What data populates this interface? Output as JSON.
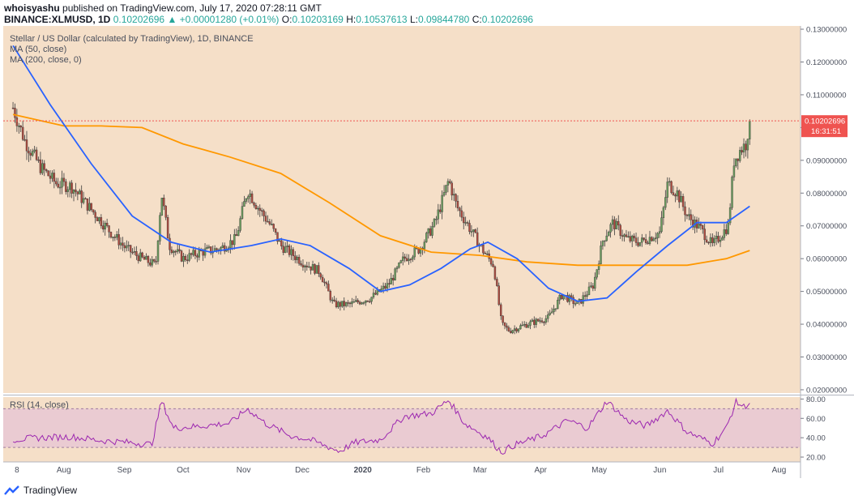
{
  "header": {
    "author": "whoisyashu",
    "published": "published on TradingView.com, July 17, 2020 07:28:11 GMT",
    "symbol": "BINANCE:XLMUSD, 1D",
    "last": "0.10202696",
    "change": "▲ +0.00001280 (+0.01%)",
    "o_label": "O:",
    "o_val": "0.10203169",
    "h_label": "H:",
    "h_val": "0.10537613",
    "l_label": "L:",
    "l_val": "0.09844780",
    "c_label": "C:",
    "c_val": "0.10202696"
  },
  "legend": {
    "title": "Stellar / US Dollar (calculated by TradingView), 1D, BINANCE",
    "ma50": "MA (50, close)",
    "ma200": "MA (200, close, 0)",
    "rsi": "RSI (14, close)"
  },
  "price_marker": {
    "value": "0.10202696",
    "countdown": "16:31:51"
  },
  "brand": "TradingView",
  "colors": {
    "background": "#f5dfc8",
    "up": "#26a69a",
    "down": "#ef5350",
    "candle_up_fill": "#6b9e5e",
    "candle_down_fill": "#b04a3e",
    "ma50": "#2962ff",
    "ma200": "#ff9800",
    "rsi": "#9c27b0",
    "rsi_band": "#e6c4d6",
    "price_line": "#ef5350"
  },
  "chart_data": [
    {
      "type": "candlestick",
      "title": "Stellar / US Dollar (calculated by TradingView), 1D, BINANCE",
      "x_tick_labels": [
        "8",
        "Aug",
        "Sep",
        "Oct",
        "Nov",
        "Dec",
        "2020",
        "Feb",
        "Mar",
        "Apr",
        "May",
        "Jun",
        "Jul",
        "Aug"
      ],
      "y_tick_labels": [
        "0.02000000",
        "0.03000000",
        "0.04000000",
        "0.05000000",
        "0.06000000",
        "0.07000000",
        "0.08000000",
        "0.09000000",
        "0.10000000",
        "0.11000000",
        "0.12000000",
        "0.13000000"
      ],
      "ylim": [
        0.019,
        0.131
      ],
      "period": "1D",
      "date_range": [
        "2019-07-06",
        "2020-07-17"
      ],
      "price_path": [
        [
          "2019-07-06",
          0.106
        ],
        [
          "2019-07-12",
          0.096
        ],
        [
          "2019-07-20",
          0.088
        ],
        [
          "2019-07-28",
          0.083
        ],
        [
          "2019-08-05",
          0.082
        ],
        [
          "2019-08-15",
          0.075
        ],
        [
          "2019-08-25",
          0.068
        ],
        [
          "2019-09-02",
          0.063
        ],
        [
          "2019-09-10",
          0.06
        ],
        [
          "2019-09-17",
          0.058
        ],
        [
          "2019-09-20",
          0.08
        ],
        [
          "2019-09-24",
          0.064
        ],
        [
          "2019-10-01",
          0.06
        ],
        [
          "2019-10-10",
          0.062
        ],
        [
          "2019-10-20",
          0.063
        ],
        [
          "2019-10-28",
          0.066
        ],
        [
          "2019-11-03",
          0.081
        ],
        [
          "2019-11-08",
          0.076
        ],
        [
          "2019-11-15",
          0.07
        ],
        [
          "2019-11-20",
          0.064
        ],
        [
          "2019-12-01",
          0.059
        ],
        [
          "2019-12-10",
          0.056
        ],
        [
          "2019-12-17",
          0.046
        ],
        [
          "2019-12-25",
          0.046
        ],
        [
          "2020-01-05",
          0.048
        ],
        [
          "2020-01-14",
          0.052
        ],
        [
          "2020-01-22",
          0.06
        ],
        [
          "2020-01-30",
          0.063
        ],
        [
          "2020-02-07",
          0.071
        ],
        [
          "2020-02-14",
          0.084
        ],
        [
          "2020-02-18",
          0.076
        ],
        [
          "2020-02-25",
          0.069
        ],
        [
          "2020-03-03",
          0.062
        ],
        [
          "2020-03-08",
          0.058
        ],
        [
          "2020-03-12",
          0.04
        ],
        [
          "2020-03-16",
          0.038
        ],
        [
          "2020-03-25",
          0.04
        ],
        [
          "2020-04-05",
          0.042
        ],
        [
          "2020-04-12",
          0.049
        ],
        [
          "2020-04-20",
          0.046
        ],
        [
          "2020-04-28",
          0.052
        ],
        [
          "2020-05-03",
          0.066
        ],
        [
          "2020-05-08",
          0.071
        ],
        [
          "2020-05-15",
          0.066
        ],
        [
          "2020-05-22",
          0.065
        ],
        [
          "2020-06-01",
          0.068
        ],
        [
          "2020-06-05",
          0.083
        ],
        [
          "2020-06-10",
          0.08
        ],
        [
          "2020-06-15",
          0.073
        ],
        [
          "2020-06-22",
          0.069
        ],
        [
          "2020-06-28",
          0.064
        ],
        [
          "2020-07-02",
          0.067
        ],
        [
          "2020-07-06",
          0.07
        ],
        [
          "2020-07-09",
          0.09
        ],
        [
          "2020-07-12",
          0.093
        ],
        [
          "2020-07-15",
          0.095
        ],
        [
          "2020-07-17",
          0.102
        ]
      ],
      "ma50_path": [
        [
          "2019-07-06",
          0.125
        ],
        [
          "2019-07-25",
          0.107
        ],
        [
          "2019-08-15",
          0.089
        ],
        [
          "2019-09-05",
          0.073
        ],
        [
          "2019-09-25",
          0.065
        ],
        [
          "2019-10-15",
          0.062
        ],
        [
          "2019-11-05",
          0.064
        ],
        [
          "2019-11-20",
          0.066
        ],
        [
          "2019-12-05",
          0.064
        ],
        [
          "2019-12-25",
          0.057
        ],
        [
          "2020-01-10",
          0.05
        ],
        [
          "2020-01-25",
          0.052
        ],
        [
          "2020-02-10",
          0.057
        ],
        [
          "2020-02-25",
          0.063
        ],
        [
          "2020-03-05",
          0.065
        ],
        [
          "2020-03-20",
          0.06
        ],
        [
          "2020-04-05",
          0.051
        ],
        [
          "2020-04-20",
          0.047
        ],
        [
          "2020-05-05",
          0.048
        ],
        [
          "2020-05-20",
          0.056
        ],
        [
          "2020-06-05",
          0.064
        ],
        [
          "2020-06-20",
          0.071
        ],
        [
          "2020-07-05",
          0.071
        ],
        [
          "2020-07-17",
          0.076
        ]
      ],
      "ma200_path": [
        [
          "2019-07-06",
          0.104
        ],
        [
          "2019-08-01",
          0.1005
        ],
        [
          "2019-08-20",
          0.1005
        ],
        [
          "2019-09-10",
          0.1
        ],
        [
          "2019-10-01",
          0.095
        ],
        [
          "2019-10-25",
          0.091
        ],
        [
          "2019-11-20",
          0.086
        ],
        [
          "2019-12-15",
          0.077
        ],
        [
          "2020-01-10",
          0.067
        ],
        [
          "2020-02-05",
          0.062
        ],
        [
          "2020-03-01",
          0.061
        ],
        [
          "2020-03-25",
          0.059
        ],
        [
          "2020-04-20",
          0.058
        ],
        [
          "2020-05-20",
          0.058
        ],
        [
          "2020-06-15",
          0.058
        ],
        [
          "2020-07-05",
          0.06
        ],
        [
          "2020-07-17",
          0.0625
        ]
      ],
      "last_price": 0.10202696
    },
    {
      "type": "line",
      "title": "RSI (14, close)",
      "y_tick_labels": [
        "20.00",
        "40.00",
        "60.00",
        "80.00"
      ],
      "ylim": [
        15,
        82
      ],
      "band": [
        30,
        70
      ],
      "rsi_path": [
        [
          "2019-07-06",
          38
        ],
        [
          "2019-07-20",
          40
        ],
        [
          "2019-08-05",
          41
        ],
        [
          "2019-08-20",
          37
        ],
        [
          "2019-09-05",
          35
        ],
        [
          "2019-09-15",
          33
        ],
        [
          "2019-09-20",
          78
        ],
        [
          "2019-09-26",
          50
        ],
        [
          "2019-10-10",
          52
        ],
        [
          "2019-10-25",
          55
        ],
        [
          "2019-11-03",
          70
        ],
        [
          "2019-11-12",
          55
        ],
        [
          "2019-11-25",
          42
        ],
        [
          "2019-12-05",
          38
        ],
        [
          "2019-12-15",
          30
        ],
        [
          "2019-12-20",
          26
        ],
        [
          "2019-12-28",
          35
        ],
        [
          "2020-01-10",
          38
        ],
        [
          "2020-01-22",
          62
        ],
        [
          "2020-02-05",
          65
        ],
        [
          "2020-02-14",
          79
        ],
        [
          "2020-02-22",
          55
        ],
        [
          "2020-03-05",
          40
        ],
        [
          "2020-03-12",
          25
        ],
        [
          "2020-03-18",
          32
        ],
        [
          "2020-04-02",
          42
        ],
        [
          "2020-04-15",
          58
        ],
        [
          "2020-04-25",
          50
        ],
        [
          "2020-05-05",
          78
        ],
        [
          "2020-05-15",
          58
        ],
        [
          "2020-05-25",
          52
        ],
        [
          "2020-06-05",
          68
        ],
        [
          "2020-06-15",
          46
        ],
        [
          "2020-06-28",
          34
        ],
        [
          "2020-07-05",
          50
        ],
        [
          "2020-07-10",
          77
        ],
        [
          "2020-07-14",
          72
        ],
        [
          "2020-07-17",
          76
        ]
      ]
    }
  ]
}
